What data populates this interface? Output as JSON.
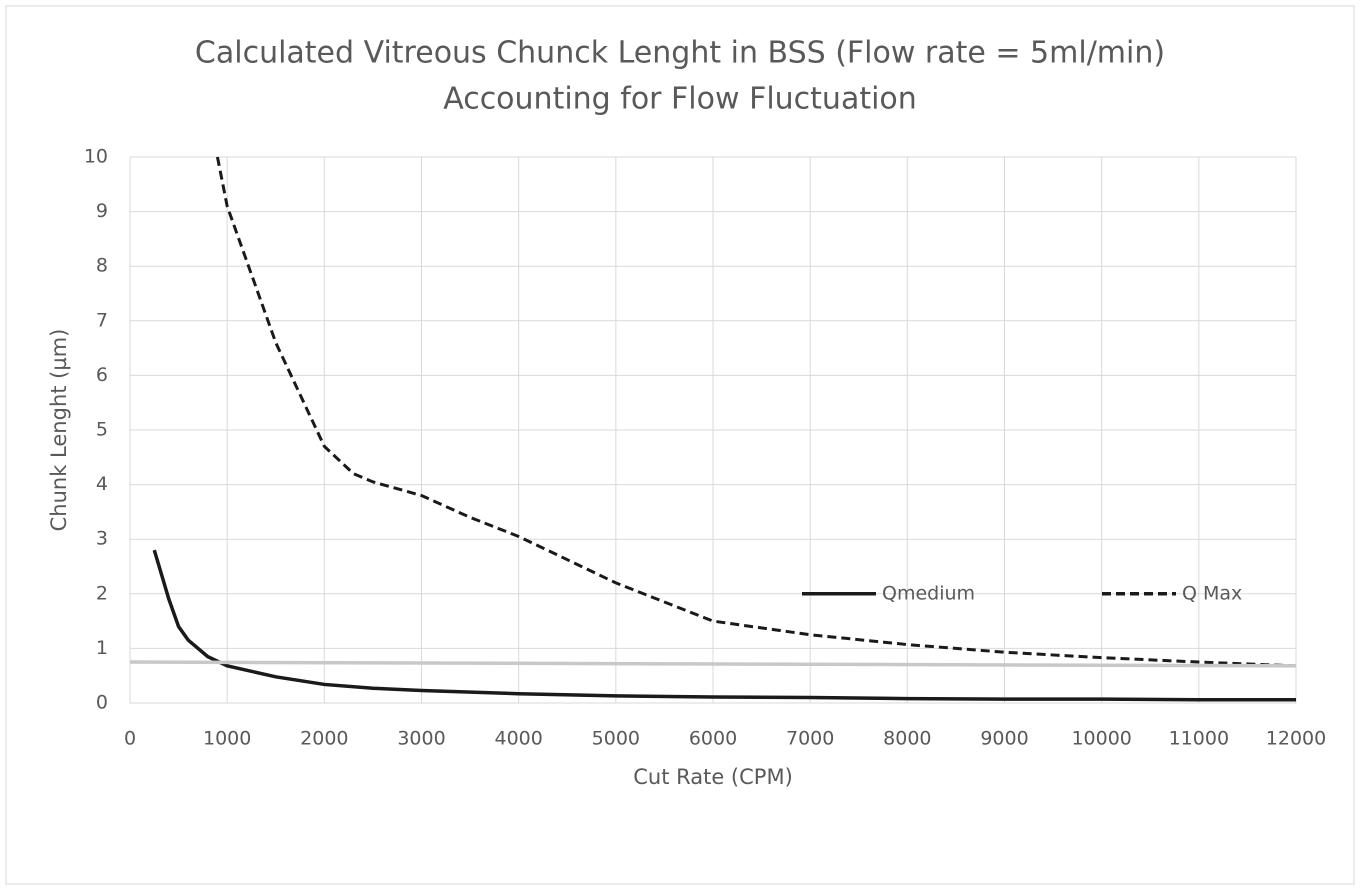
{
  "chart_data": {
    "type": "line",
    "title": [
      "Calculated Vitreous Chunck Lenght in BSS (Flow rate = 5ml/min)",
      "Accounting for Flow Fluctuation"
    ],
    "x_label": "Cut Rate (CPM)",
    "y_label": "Chunk Lenght (µm)",
    "xlim": [
      0,
      12000
    ],
    "xticks": [
      0,
      1000,
      2000,
      3000,
      4000,
      5000,
      6000,
      7000,
      8000,
      9000,
      10000,
      11000,
      12000
    ],
    "ylim": [
      0,
      10
    ],
    "yticks": [
      0,
      1,
      2,
      3,
      4,
      5,
      6,
      7,
      8,
      9,
      10
    ],
    "grid": true,
    "legend": "center-right",
    "series": [
      {
        "name": "Qmedium",
        "color": "#1a1a1a",
        "dash": "solid",
        "x": [
          250,
          400,
          500,
          600,
          800,
          1000,
          1500,
          2000,
          2500,
          3000,
          4000,
          5000,
          6000,
          7000,
          8000,
          9000,
          10000,
          11000,
          12000
        ],
        "values": [
          2.8,
          1.9,
          1.4,
          1.15,
          0.85,
          0.68,
          0.48,
          0.34,
          0.27,
          0.23,
          0.17,
          0.13,
          0.11,
          0.1,
          0.08,
          0.07,
          0.07,
          0.06,
          0.06
        ]
      },
      {
        "name": "Q Max",
        "color": "#1a1a1a",
        "dash": "dashed",
        "x": [
          900,
          1000,
          1500,
          2000,
          2300,
          2500,
          3000,
          3500,
          4000,
          5000,
          6000,
          7000,
          8000,
          9000,
          10000,
          11000,
          12000
        ],
        "values": [
          10,
          9.1,
          6.6,
          4.7,
          4.2,
          4.05,
          3.8,
          3.4,
          3.05,
          2.2,
          1.5,
          1.25,
          1.07,
          0.93,
          0.83,
          0.75,
          0.68
        ]
      },
      {
        "color": "#c8c8c8",
        "dash": "solid",
        "x": [
          0,
          12000
        ],
        "values": [
          0.75,
          0.68
        ]
      }
    ]
  }
}
